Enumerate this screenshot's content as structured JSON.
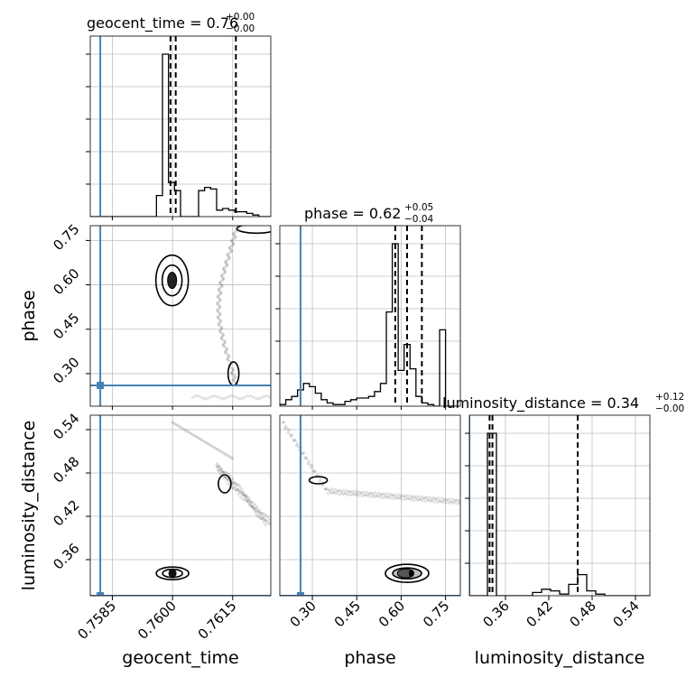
{
  "chart_data": {
    "type": "corner",
    "parameters": [
      "geocent_time",
      "phase",
      "luminosity_distance"
    ],
    "injection": {
      "geocent_time": 0.7582,
      "phase": 0.26,
      "luminosity_distance": 0.31
    },
    "colors": {
      "truth": "#4682b4",
      "contour": "#000000",
      "grid": "#bfbfbf"
    },
    "grid": true,
    "axes": {
      "geocent_time": {
        "range": [
          0.75795,
          0.76245
        ],
        "ticks": [
          0.7585,
          0.76,
          0.7615
        ],
        "tick_labels": [
          "0.7585",
          "0.7600",
          "0.7615"
        ]
      },
      "phase": {
        "range": [
          0.19,
          0.8
        ],
        "ticks": [
          0.3,
          0.45,
          0.6,
          0.75
        ],
        "tick_labels": [
          "0.30",
          "0.45",
          "0.60",
          "0.75"
        ]
      },
      "luminosity_distance": {
        "range": [
          0.31,
          0.56
        ],
        "ticks": [
          0.36,
          0.42,
          0.48,
          0.54
        ],
        "tick_labels": [
          "0.36",
          "0.42",
          "0.48",
          "0.54"
        ]
      }
    },
    "titles": {
      "geocent_time": {
        "text": "geocent_time = 0.76",
        "plus": "+0.00",
        "minus": "−0.00"
      },
      "phase": {
        "text": "phase = 0.62",
        "plus": "+0.05",
        "minus": "−0.04"
      },
      "luminosity_distance": {
        "text": "luminosity_distance = 0.34",
        "plus": "+0.12",
        "minus": "−0.00"
      }
    },
    "axis_labels": {
      "x": [
        "geocent_time",
        "phase",
        "luminosity_distance"
      ],
      "y": [
        "phase",
        "luminosity_distance"
      ]
    },
    "histograms": {
      "geocent_time": {
        "bins": [
          0.75795,
          0.7581,
          0.75825,
          0.7584,
          0.75855,
          0.7587,
          0.75885,
          0.759,
          0.75915,
          0.7593,
          0.75945,
          0.7596,
          0.75975,
          0.7599,
          0.76005,
          0.7602,
          0.76035,
          0.7605,
          0.76065,
          0.7608,
          0.76095,
          0.7611,
          0.76125,
          0.7614,
          0.76155,
          0.7617,
          0.76185,
          0.762,
          0.76215,
          0.7623,
          0.76245
        ],
        "counts": [
          0,
          0,
          0,
          0,
          0,
          0,
          0,
          0,
          0,
          0,
          0,
          0.13,
          1.0,
          0.21,
          0.16,
          0,
          0,
          0,
          0.16,
          0.18,
          0.17,
          0.04,
          0.05,
          0.04,
          0.03,
          0.03,
          0.02,
          0.01,
          0,
          0
        ],
        "quantiles": [
          0.75995,
          0.76008,
          0.76158
        ]
      },
      "phase": {
        "bins": [
          0.19,
          0.21,
          0.23,
          0.25,
          0.27,
          0.29,
          0.31,
          0.33,
          0.35,
          0.37,
          0.39,
          0.41,
          0.43,
          0.45,
          0.47,
          0.49,
          0.51,
          0.53,
          0.55,
          0.57,
          0.59,
          0.61,
          0.63,
          0.65,
          0.67,
          0.69,
          0.71,
          0.73,
          0.75,
          0.77,
          0.79
        ],
        "counts": [
          0.01,
          0.04,
          0.06,
          0.1,
          0.14,
          0.12,
          0.08,
          0.04,
          0.02,
          0.01,
          0.01,
          0.03,
          0.04,
          0.05,
          0.05,
          0.06,
          0.09,
          0.14,
          0.58,
          1.0,
          0.22,
          0.38,
          0.23,
          0.06,
          0.02,
          0.01,
          0,
          0.47,
          0,
          0
        ],
        "quantiles": [
          0.58,
          0.62,
          0.67
        ]
      },
      "luminosity_distance": {
        "bins": [
          0.31,
          0.3225,
          0.335,
          0.3475,
          0.36,
          0.3725,
          0.385,
          0.3975,
          0.41,
          0.4225,
          0.435,
          0.4475,
          0.46,
          0.4725,
          0.485,
          0.4975,
          0.51,
          0.5225,
          0.535,
          0.5475,
          0.56
        ],
        "counts": [
          0,
          0,
          1.0,
          0,
          0,
          0,
          0,
          0.02,
          0.04,
          0.03,
          0.01,
          0.07,
          0.13,
          0.03,
          0.01,
          0,
          0,
          0,
          0,
          0
        ],
        "quantiles": [
          0.338,
          0.342,
          0.46
        ]
      }
    }
  }
}
